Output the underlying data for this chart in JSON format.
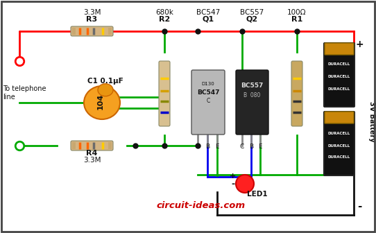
{
  "bg_color": "#ffffff",
  "border_color": "#444444",
  "wire_red": "#ff0000",
  "wire_green": "#00aa00",
  "wire_black": "#111111",
  "wire_blue": "#0000ee",
  "dot_color": "#111111",
  "text_color": "#111111",
  "watermark": "circuit-ideas.com",
  "watermark_color": "#cc0000",
  "battery_label": "3V Battery",
  "tel_label1": "To telephone",
  "tel_label2": "line",
  "R3_label": "R3",
  "R3_val": "3.3M",
  "R2_label": "R2",
  "R2_val": "680k",
  "Q1_label": "Q1",
  "Q1_val": "BC547",
  "Q2_label": "Q2",
  "Q2_val": "BC557",
  "R1_label": "R1",
  "R1_val": "100Ω",
  "C1_label": "C1 0.1μF",
  "R4_label": "R4",
  "R4_val": "3.3M",
  "LED_label": "LED1",
  "plus_label": "+",
  "minus_label": "-"
}
